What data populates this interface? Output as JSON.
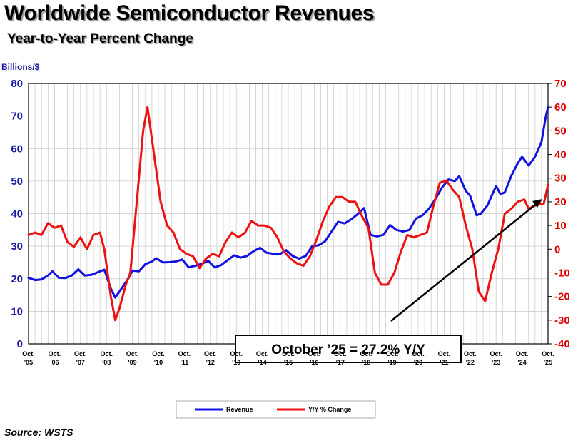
{
  "title": "Worldwide Semiconductor Revenues",
  "subtitle": "Year-to-Year Percent Change",
  "source": "Source: WSTS",
  "chart_data": {
    "type": "line",
    "left_axis": {
      "label": "Billions/$",
      "min": 0,
      "max": 80,
      "ticks": [
        "0",
        "10",
        "20",
        "30",
        "40",
        "50",
        "60",
        "70",
        "80"
      ],
      "color": "#1a1aa0"
    },
    "right_axis": {
      "label": "",
      "min": -40,
      "max": 70,
      "ticks": [
        "-40",
        "-30",
        "-20",
        "-10",
        "0",
        "10",
        "20",
        "30",
        "40",
        "50",
        "60",
        "70"
      ],
      "color": "#e00000"
    },
    "x_ticks": [
      [
        "Oct.",
        "'05"
      ],
      [
        "Oct.",
        "'06"
      ],
      [
        "Oct.",
        "'07"
      ],
      [
        "Oct.",
        "'08"
      ],
      [
        "Oct.",
        "'09"
      ],
      [
        "Oct.",
        "'10"
      ],
      [
        "Oct.",
        "'11"
      ],
      [
        "Oct.",
        "'12"
      ],
      [
        "Oct.",
        "'13"
      ],
      [
        "Oct.",
        "'14"
      ],
      [
        "Oct.",
        "'15"
      ],
      [
        "Oct.",
        "'16"
      ],
      [
        "Oct.",
        "'17"
      ],
      [
        "Oct.",
        "'18"
      ],
      [
        "Oct.",
        "'19"
      ],
      [
        "Oct.",
        "'20"
      ],
      [
        "Oct.",
        "'21"
      ],
      [
        "Oct.",
        "'22"
      ],
      [
        "Oct.",
        "'23"
      ],
      [
        "Oct.",
        "'24"
      ],
      [
        "Oct.",
        "'25"
      ]
    ],
    "grid": true,
    "legend_position": "bottom",
    "series": [
      {
        "name": "Revenue",
        "axis": "left",
        "color": "#1010e0",
        "points": [
          [
            "2005-10",
            20.3
          ],
          [
            "2006-01",
            19.6
          ],
          [
            "2006-04",
            19.8
          ],
          [
            "2006-07",
            21.0
          ],
          [
            "2006-09",
            22.3
          ],
          [
            "2006-12",
            20.3
          ],
          [
            "2007-03",
            20.2
          ],
          [
            "2007-06",
            21.0
          ],
          [
            "2007-09",
            22.9
          ],
          [
            "2007-12",
            21.0
          ],
          [
            "2008-03",
            21.2
          ],
          [
            "2008-06",
            22.0
          ],
          [
            "2008-09",
            22.8
          ],
          [
            "2008-12",
            17.0
          ],
          [
            "2009-02",
            14.2
          ],
          [
            "2009-05",
            17.0
          ],
          [
            "2009-08",
            20.0
          ],
          [
            "2009-10",
            22.5
          ],
          [
            "2010-01",
            22.3
          ],
          [
            "2010-04",
            24.5
          ],
          [
            "2010-07",
            25.3
          ],
          [
            "2010-09",
            26.3
          ],
          [
            "2010-12",
            25.0
          ],
          [
            "2011-03",
            25.1
          ],
          [
            "2011-06",
            25.3
          ],
          [
            "2011-09",
            25.9
          ],
          [
            "2011-12",
            23.5
          ],
          [
            "2012-03",
            24.0
          ],
          [
            "2012-06",
            24.6
          ],
          [
            "2012-09",
            25.5
          ],
          [
            "2012-12",
            23.5
          ],
          [
            "2013-03",
            24.2
          ],
          [
            "2013-06",
            25.7
          ],
          [
            "2013-09",
            27.2
          ],
          [
            "2013-12",
            26.5
          ],
          [
            "2014-03",
            27.0
          ],
          [
            "2014-06",
            28.5
          ],
          [
            "2014-09",
            29.5
          ],
          [
            "2014-12",
            28.0
          ],
          [
            "2015-03",
            27.7
          ],
          [
            "2015-06",
            27.5
          ],
          [
            "2015-09",
            28.8
          ],
          [
            "2015-12",
            27.0
          ],
          [
            "2016-03",
            26.2
          ],
          [
            "2016-06",
            27.0
          ],
          [
            "2016-09",
            30.0
          ],
          [
            "2016-12",
            30.3
          ],
          [
            "2017-03",
            31.5
          ],
          [
            "2017-06",
            34.5
          ],
          [
            "2017-09",
            37.5
          ],
          [
            "2017-12",
            37.0
          ],
          [
            "2018-03",
            38.2
          ],
          [
            "2018-06",
            39.8
          ],
          [
            "2018-09",
            41.7
          ],
          [
            "2018-12",
            33.5
          ],
          [
            "2019-03",
            33.0
          ],
          [
            "2019-06",
            33.5
          ],
          [
            "2019-09",
            36.5
          ],
          [
            "2019-12",
            35.0
          ],
          [
            "2020-03",
            34.5
          ],
          [
            "2020-06",
            35.0
          ],
          [
            "2020-09",
            38.5
          ],
          [
            "2020-12",
            39.5
          ],
          [
            "2021-03",
            41.5
          ],
          [
            "2021-06",
            44.5
          ],
          [
            "2021-09",
            48.0
          ],
          [
            "2021-12",
            50.5
          ],
          [
            "2022-03",
            50.0
          ],
          [
            "2022-05",
            51.5
          ],
          [
            "2022-08",
            47.0
          ],
          [
            "2022-10",
            45.5
          ],
          [
            "2023-01",
            39.5
          ],
          [
            "2023-03",
            40.0
          ],
          [
            "2023-06",
            42.5
          ],
          [
            "2023-08",
            45.5
          ],
          [
            "2023-10",
            48.5
          ],
          [
            "2023-12",
            46.0
          ],
          [
            "2024-02",
            46.5
          ],
          [
            "2024-05",
            51.5
          ],
          [
            "2024-08",
            55.5
          ],
          [
            "2024-10",
            57.5
          ],
          [
            "2025-01",
            54.8
          ],
          [
            "2025-04",
            57.5
          ],
          [
            "2025-07",
            62.0
          ],
          [
            "2025-09",
            70.0
          ],
          [
            "2025-10",
            72.7
          ]
        ]
      },
      {
        "name": "Y/Y % Change",
        "axis": "right",
        "color": "#ee1111",
        "points": [
          [
            "2005-10",
            6
          ],
          [
            "2006-01",
            7
          ],
          [
            "2006-04",
            6
          ],
          [
            "2006-07",
            11
          ],
          [
            "2006-10",
            9
          ],
          [
            "2007-01",
            10
          ],
          [
            "2007-04",
            3
          ],
          [
            "2007-07",
            1
          ],
          [
            "2007-10",
            5
          ],
          [
            "2008-01",
            0
          ],
          [
            "2008-04",
            6
          ],
          [
            "2008-07",
            7
          ],
          [
            "2008-09",
            0
          ],
          [
            "2008-12",
            -20
          ],
          [
            "2009-02",
            -30
          ],
          [
            "2009-04",
            -25
          ],
          [
            "2009-07",
            -15
          ],
          [
            "2009-09",
            -10
          ],
          [
            "2009-12",
            20
          ],
          [
            "2010-03",
            50
          ],
          [
            "2010-05",
            60
          ],
          [
            "2010-08",
            40
          ],
          [
            "2010-11",
            20
          ],
          [
            "2011-02",
            10
          ],
          [
            "2011-05",
            7
          ],
          [
            "2011-08",
            0
          ],
          [
            "2011-11",
            -2
          ],
          [
            "2012-02",
            -3
          ],
          [
            "2012-05",
            -8
          ],
          [
            "2012-08",
            -4
          ],
          [
            "2012-11",
            -2
          ],
          [
            "2013-02",
            -3
          ],
          [
            "2013-05",
            3
          ],
          [
            "2013-08",
            7
          ],
          [
            "2013-11",
            5
          ],
          [
            "2014-02",
            7
          ],
          [
            "2014-05",
            12
          ],
          [
            "2014-08",
            10
          ],
          [
            "2014-11",
            10
          ],
          [
            "2015-02",
            9
          ],
          [
            "2015-05",
            5
          ],
          [
            "2015-08",
            -1
          ],
          [
            "2015-11",
            -4
          ],
          [
            "2016-02",
            -6
          ],
          [
            "2016-05",
            -7
          ],
          [
            "2016-08",
            -3
          ],
          [
            "2016-11",
            4
          ],
          [
            "2017-02",
            12
          ],
          [
            "2017-05",
            18
          ],
          [
            "2017-08",
            22
          ],
          [
            "2017-11",
            22
          ],
          [
            "2018-02",
            20
          ],
          [
            "2018-05",
            20
          ],
          [
            "2018-08",
            14
          ],
          [
            "2018-11",
            9
          ],
          [
            "2019-02",
            -10
          ],
          [
            "2019-05",
            -15
          ],
          [
            "2019-08",
            -15
          ],
          [
            "2019-11",
            -10
          ],
          [
            "2020-02",
            -1
          ],
          [
            "2020-05",
            6
          ],
          [
            "2020-08",
            5
          ],
          [
            "2020-11",
            6
          ],
          [
            "2021-02",
            7
          ],
          [
            "2021-05",
            18
          ],
          [
            "2021-08",
            28
          ],
          [
            "2021-11",
            29
          ],
          [
            "2022-02",
            25
          ],
          [
            "2022-05",
            22
          ],
          [
            "2022-08",
            10
          ],
          [
            "2022-11",
            0
          ],
          [
            "2023-02",
            -18
          ],
          [
            "2023-05",
            -22
          ],
          [
            "2023-08",
            -10
          ],
          [
            "2023-11",
            0
          ],
          [
            "2024-02",
            15
          ],
          [
            "2024-05",
            17
          ],
          [
            "2024-08",
            20
          ],
          [
            "2024-11",
            21
          ],
          [
            "2025-01",
            17
          ],
          [
            "2025-03",
            18
          ],
          [
            "2025-06",
            19
          ],
          [
            "2025-08",
            19
          ],
          [
            "2025-10",
            27.2
          ]
        ]
      }
    ],
    "annotation": "October ’25 = 27.2% Y/Y"
  }
}
